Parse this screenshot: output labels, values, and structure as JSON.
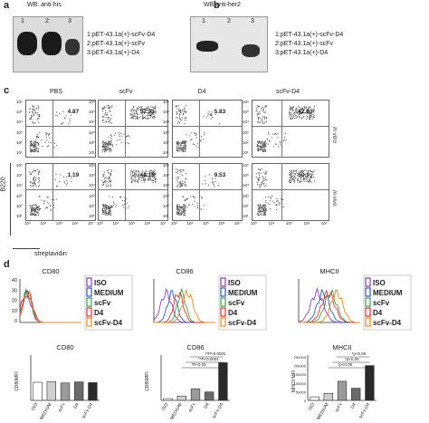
{
  "panel_a": {
    "letter": "a",
    "wb_label": "WB: anti-his",
    "lanes": [
      "1",
      "2",
      "3"
    ],
    "legend": [
      "1:pET-43.1a(+)-scFv-D4",
      "2:pET-43.1a(+)-scFv",
      "3:pET-43.1a(+)-D4"
    ]
  },
  "panel_b": {
    "letter": "b",
    "wb_label": "WB:anti-her2",
    "lanes": [
      "1",
      "2",
      "3"
    ],
    "legend": [
      "1:pET-43.1a(+)-scFv-D4",
      "2:pET-43.1a(+)-scFv",
      "3:pET-43.1a(+)-D4"
    ]
  },
  "panel_c": {
    "letter": "c",
    "columns": [
      "PBS",
      "scFv",
      "D4",
      "scFv-D4"
    ],
    "rows": [
      "In vitro",
      "In vivo"
    ],
    "percent_in_vitro": [
      "4.87",
      "52.91",
      "5.83",
      "42.03"
    ],
    "percent_in_vivo": [
      "1.19",
      "44.18",
      "9.53",
      "50.9"
    ],
    "y_axis_label": "B220",
    "x_axis_label": "streptavidin",
    "ticks": [
      "10⁰",
      "10¹",
      "10²",
      "10³",
      "10⁴",
      "10⁵",
      "10⁶"
    ],
    "tick_x": [
      "10⁰",
      "10²",
      "10³",
      "10⁴",
      "10⁵",
      "10⁶",
      "10⁷"
    ]
  },
  "panel_d": {
    "letter": "d",
    "hist_titles": [
      "CD80",
      "CD86",
      "MHCII"
    ],
    "hist_yticks": [
      "40",
      "30",
      "20",
      "10",
      "0"
    ],
    "legend": [
      "ISO",
      "MEDIUM",
      "scFv",
      "D4",
      "scFv-D4"
    ],
    "legend_colors": [
      "#8a3fb0",
      "#2a5db0",
      "#3aa34a",
      "#e03030",
      "#e88a2a"
    ]
  },
  "chart_data": [
    {
      "type": "bar",
      "title": "CD80",
      "ylabel": "CD80MFI",
      "categories": [
        "ISO",
        "MEDIUM",
        "scFv",
        "D4",
        "scFv-D4"
      ],
      "values": [
        250,
        260,
        240,
        255,
        245
      ],
      "ylim": [
        0,
        600
      ]
    },
    {
      "type": "bar",
      "title": "CD86",
      "ylabel": "CD86MFI",
      "categories": [
        "ISO",
        "MEDIUM",
        "scFv",
        "D4",
        "scFv-D4"
      ],
      "values": [
        60,
        150,
        400,
        290,
        1300
      ],
      "ylim": [
        0,
        1500
      ],
      "annotations": [
        "*P<0.05",
        "**P<0.0001",
        "**P<0.0001"
      ]
    },
    {
      "type": "bar",
      "title": "MHCII",
      "ylabel": "MHCII MFI",
      "yticks": [
        "250000",
        "200000",
        "150000",
        "100000",
        "50000",
        "0"
      ],
      "categories": [
        "ISO",
        "MEDIUM",
        "scFv",
        "D4",
        "scFv-D4"
      ],
      "values": [
        20000,
        40000,
        110000,
        70000,
        200000
      ],
      "ylim": [
        0,
        250000
      ],
      "annotations": [
        "*p<0.05",
        "*p<0.05",
        "*p<0.05"
      ]
    }
  ]
}
